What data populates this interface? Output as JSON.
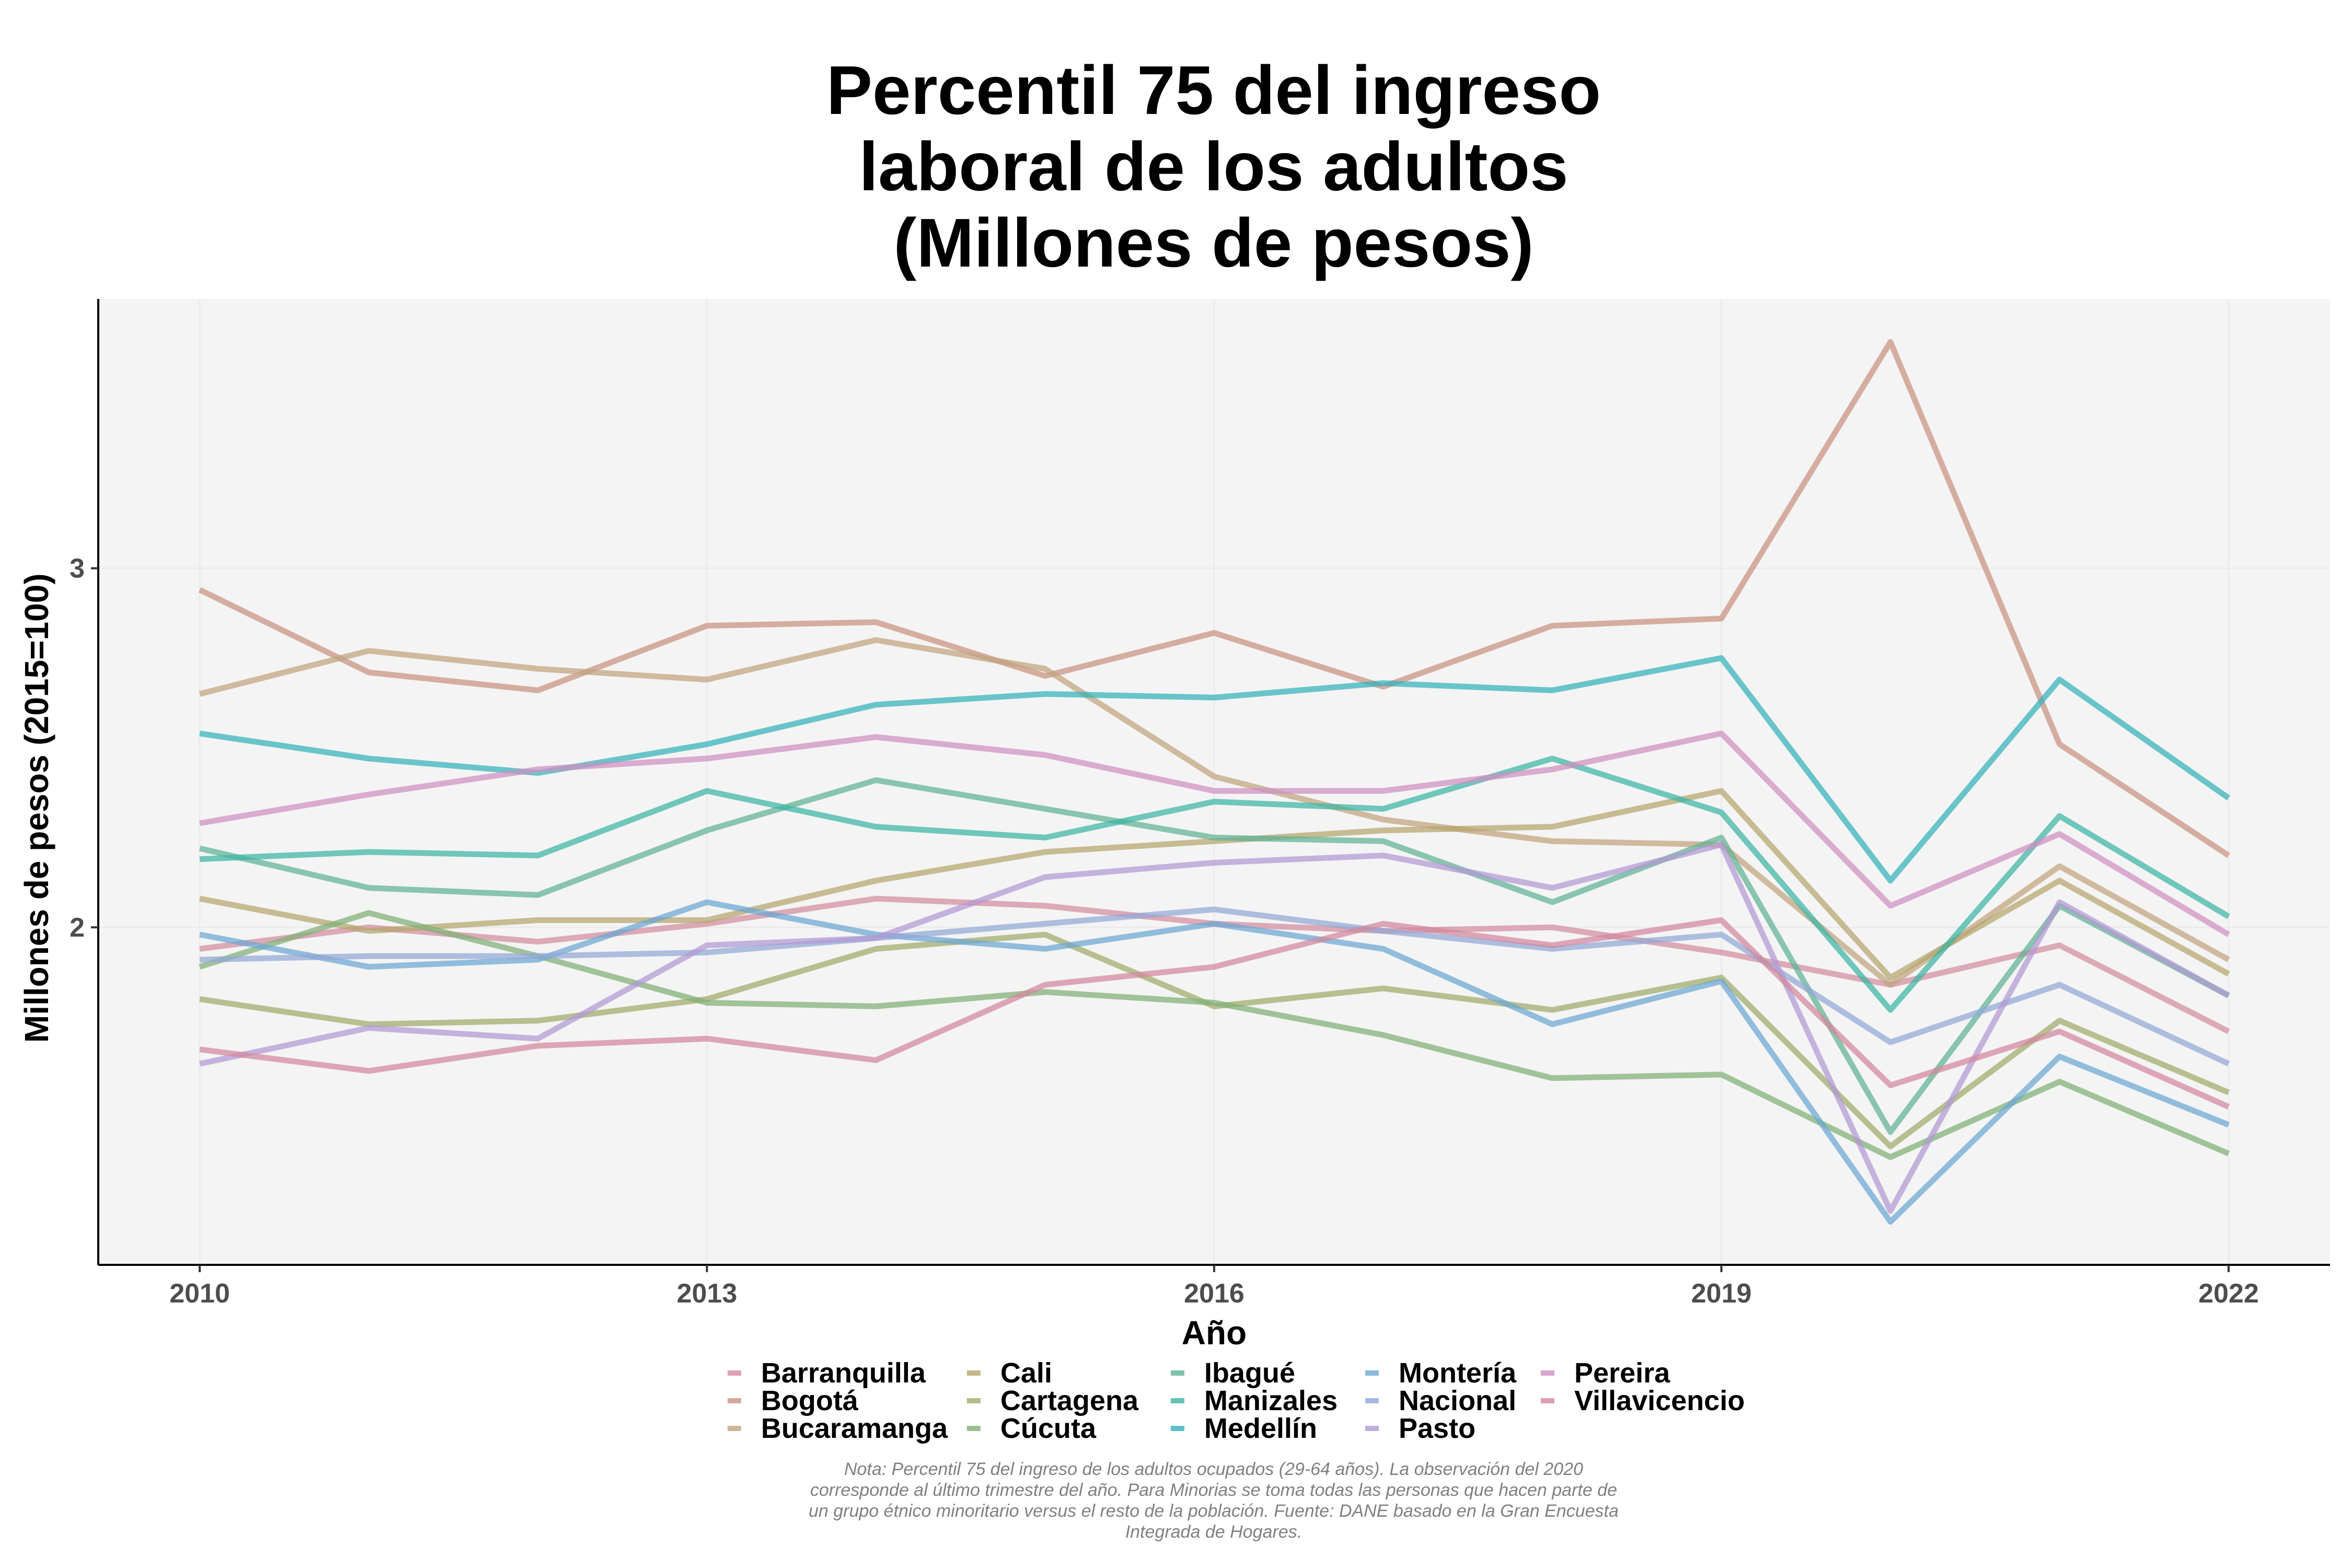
{
  "chart_data": {
    "type": "line",
    "title": [
      "Percentil 75 del ingreso",
      "laboral de los adultos",
      "(Millones de pesos)"
    ],
    "xlabel": "Año",
    "ylabel": "Millones de pesos (2015=100)",
    "x": [
      2010,
      2011,
      2012,
      2013,
      2014,
      2015,
      2016,
      2017,
      2018,
      2019,
      2020,
      2021,
      2022
    ],
    "xticks": [
      "2010",
      "2013",
      "2016",
      "2019",
      "2022"
    ],
    "yticks": [
      "2",
      "3"
    ],
    "xlim": [
      2009.4,
      2022.6
    ],
    "ylim": [
      1.06,
      3.75
    ],
    "grid": true,
    "legend_position": "bottom",
    "note": [
      "Nota: Percentil 75 del ingreso de los adultos ocupados (29-64 años). La observación del 2020",
      "corresponde al último trimestre del año. Para Minorias se toma todas las personas que hacen parte de",
      "un grupo étnico minoritario versus el resto de la población. Fuente: DANE basado en la Gran Encuesta",
      "Integrada de Hogares."
    ],
    "series": [
      {
        "name": "Barranquilla",
        "color": "#d28ca0",
        "values": [
          1.94,
          2.0,
          1.96,
          2.01,
          2.08,
          2.06,
          2.01,
          1.99,
          2.0,
          1.93,
          1.84,
          1.95,
          1.71
        ]
      },
      {
        "name": "Bogotá",
        "color": "#c99280",
        "values": [
          2.94,
          2.71,
          2.66,
          2.84,
          2.85,
          2.7,
          2.82,
          2.67,
          2.84,
          2.86,
          3.63,
          2.51,
          2.2
        ]
      },
      {
        "name": "Bucaramanga",
        "color": "#c0a37e",
        "values": [
          2.65,
          2.77,
          2.72,
          2.69,
          2.8,
          2.72,
          2.42,
          2.3,
          2.24,
          2.23,
          1.84,
          2.17,
          1.91
        ]
      },
      {
        "name": "Cali",
        "color": "#b4a56c",
        "values": [
          2.08,
          1.99,
          2.02,
          2.02,
          2.13,
          2.21,
          2.24,
          2.27,
          2.28,
          2.38,
          1.86,
          2.13,
          1.87
        ]
      },
      {
        "name": "Cartagena",
        "color": "#a0ab6a",
        "values": [
          1.8,
          1.73,
          1.74,
          1.8,
          1.94,
          1.98,
          1.78,
          1.83,
          1.77,
          1.86,
          1.39,
          1.74,
          1.54
        ]
      },
      {
        "name": "Cúcuta",
        "color": "#7fae74",
        "values": [
          1.89,
          2.04,
          1.92,
          1.79,
          1.78,
          1.82,
          1.79,
          1.7,
          1.58,
          1.59,
          1.36,
          1.57,
          1.37
        ]
      },
      {
        "name": "Ibagué",
        "color": "#5fb293",
        "values": [
          2.22,
          2.11,
          2.09,
          2.27,
          2.41,
          2.33,
          2.25,
          2.24,
          2.07,
          2.25,
          1.43,
          2.06,
          1.81
        ]
      },
      {
        "name": "Manizales",
        "color": "#3cb4a4",
        "values": [
          2.19,
          2.21,
          2.2,
          2.38,
          2.28,
          2.25,
          2.35,
          2.33,
          2.47,
          2.32,
          1.77,
          2.31,
          2.03
        ]
      },
      {
        "name": "Medellín",
        "color": "#33b2ba",
        "values": [
          2.54,
          2.47,
          2.43,
          2.51,
          2.62,
          2.65,
          2.64,
          2.68,
          2.66,
          2.75,
          2.13,
          2.69,
          2.36
        ]
      },
      {
        "name": "Montería",
        "color": "#6ba6d2",
        "values": [
          1.98,
          1.89,
          1.91,
          2.07,
          1.98,
          1.94,
          2.01,
          1.94,
          1.73,
          1.85,
          1.18,
          1.64,
          1.45
        ]
      },
      {
        "name": "Nacional",
        "color": "#92a8d6",
        "values": [
          1.91,
          1.92,
          1.92,
          1.93,
          1.97,
          2.01,
          2.05,
          1.99,
          1.94,
          1.98,
          1.68,
          1.84,
          1.62
        ]
      },
      {
        "name": "Pasto",
        "color": "#b299d4",
        "values": [
          1.62,
          1.72,
          1.69,
          1.95,
          1.97,
          2.14,
          2.18,
          2.2,
          2.11,
          2.23,
          1.21,
          2.07,
          1.81
        ]
      },
      {
        "name": "Pereira",
        "color": "#cf8fc0",
        "values": [
          2.29,
          2.37,
          2.44,
          2.47,
          2.53,
          2.48,
          2.38,
          2.38,
          2.44,
          2.54,
          2.06,
          2.26,
          1.98
        ]
      },
      {
        "name": "Villavicencio",
        "color": "#d2879c",
        "values": [
          1.66,
          1.6,
          1.67,
          1.69,
          1.63,
          1.84,
          1.89,
          2.01,
          1.95,
          2.02,
          1.56,
          1.71,
          1.5
        ]
      }
    ]
  }
}
